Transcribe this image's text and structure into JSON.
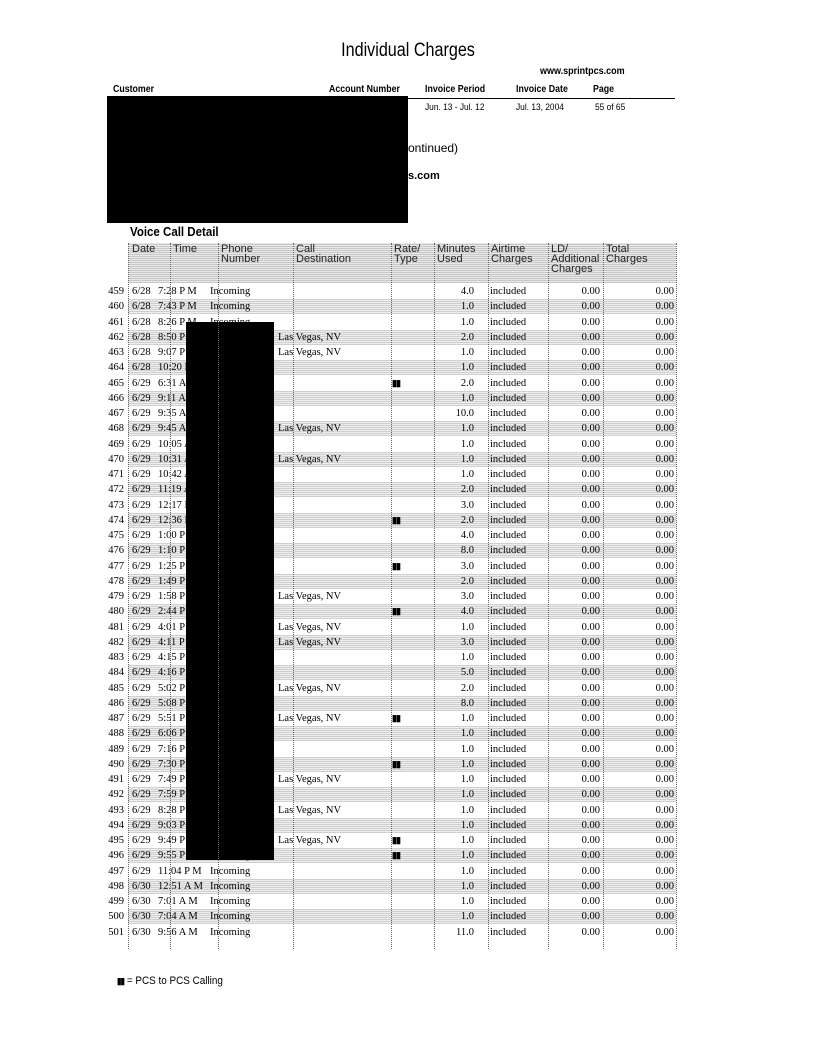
{
  "title": "Individual Charges",
  "website": "www.sprintpcs.com",
  "header": {
    "labels": {
      "customer": "Customer",
      "account_number": "Account Number",
      "invoice_period": "Invoice Period",
      "invoice_date": "Invoice Date",
      "page": "Page"
    },
    "values": {
      "invoice_period": "Jun. 13 - Jul. 12",
      "invoice_date": "Jul. 13, 2004",
      "page": "55 of 65"
    }
  },
  "partial_text": {
    "continued": "ontinued)",
    "email_suffix": "s.com"
  },
  "section_title": "Voice Call Detail",
  "columns": [
    "Date",
    "Time",
    "Phone Number",
    "Call Destination",
    "Rate/ Type",
    "Minutes Used",
    "Airtime Charges",
    "LD/ Additional Charges",
    "Total Charges"
  ],
  "pcs_icon": "walkie-talkie-pair-icon",
  "rows": [
    [
      "459",
      "6/28",
      "7:28 P M",
      "Incoming",
      "",
      false,
      "4.0",
      "included",
      "0.00",
      "0.00"
    ],
    [
      "460",
      "6/28",
      "7:43 P M",
      "Incoming",
      "",
      false,
      "1.0",
      "included",
      "0.00",
      "0.00"
    ],
    [
      "461",
      "6/28",
      "8:26 P M",
      "Incoming",
      "",
      false,
      "1.0",
      "included",
      "0.00",
      "0.00"
    ],
    [
      "462",
      "6/28",
      "8:50 P",
      "",
      "Las Vegas, NV",
      false,
      "2.0",
      "included",
      "0.00",
      "0.00"
    ],
    [
      "463",
      "6/28",
      "9:07 P",
      "",
      "Las Vegas, NV",
      false,
      "1.0",
      "included",
      "0.00",
      "0.00"
    ],
    [
      "464",
      "6/28",
      "10:20 P",
      "",
      "",
      false,
      "1.0",
      "included",
      "0.00",
      "0.00"
    ],
    [
      "465",
      "6/29",
      "6:31 A",
      "",
      "",
      true,
      "2.0",
      "included",
      "0.00",
      "0.00"
    ],
    [
      "466",
      "6/29",
      "9:11 A",
      "",
      "",
      false,
      "1.0",
      "included",
      "0.00",
      "0.00"
    ],
    [
      "467",
      "6/29",
      "9:35 A",
      "",
      "",
      false,
      "10.0",
      "included",
      "0.00",
      "0.00"
    ],
    [
      "468",
      "6/29",
      "9:45 A",
      "",
      "Las Vegas, NV",
      false,
      "1.0",
      "included",
      "0.00",
      "0.00"
    ],
    [
      "469",
      "6/29",
      "10:05 A",
      "",
      "",
      false,
      "1.0",
      "included",
      "0.00",
      "0.00"
    ],
    [
      "470",
      "6/29",
      "10:31 A",
      "",
      "Las Vegas, NV",
      false,
      "1.0",
      "included",
      "0.00",
      "0.00"
    ],
    [
      "471",
      "6/29",
      "10:42 A",
      "",
      "",
      false,
      "1.0",
      "included",
      "0.00",
      "0.00"
    ],
    [
      "472",
      "6/29",
      "11:19 A",
      "",
      "",
      false,
      "2.0",
      "included",
      "0.00",
      "0.00"
    ],
    [
      "473",
      "6/29",
      "12:17 P",
      "",
      "",
      false,
      "3.0",
      "included",
      "0.00",
      "0.00"
    ],
    [
      "474",
      "6/29",
      "12:36 P",
      "",
      "",
      true,
      "2.0",
      "included",
      "0.00",
      "0.00"
    ],
    [
      "475",
      "6/29",
      "1:00 P",
      "",
      "",
      false,
      "4.0",
      "included",
      "0.00",
      "0.00"
    ],
    [
      "476",
      "6/29",
      "1:10 P",
      "",
      "",
      false,
      "8.0",
      "included",
      "0.00",
      "0.00"
    ],
    [
      "477",
      "6/29",
      "1:25 P",
      "",
      "",
      true,
      "3.0",
      "included",
      "0.00",
      "0.00"
    ],
    [
      "478",
      "6/29",
      "1:49 P",
      "",
      "",
      false,
      "2.0",
      "included",
      "0.00",
      "0.00"
    ],
    [
      "479",
      "6/29",
      "1:58 P",
      "",
      "Las Vegas, NV",
      false,
      "3.0",
      "included",
      "0.00",
      "0.00"
    ],
    [
      "480",
      "6/29",
      "2:44 P",
      "",
      "",
      true,
      "4.0",
      "included",
      "0.00",
      "0.00"
    ],
    [
      "481",
      "6/29",
      "4:01 P",
      "",
      "Las Vegas, NV",
      false,
      "1.0",
      "included",
      "0.00",
      "0.00"
    ],
    [
      "482",
      "6/29",
      "4:11 P",
      "",
      "Las Vegas, NV",
      false,
      "3.0",
      "included",
      "0.00",
      "0.00"
    ],
    [
      "483",
      "6/29",
      "4:15 P",
      "",
      "",
      false,
      "1.0",
      "included",
      "0.00",
      "0.00"
    ],
    [
      "484",
      "6/29",
      "4:16 P",
      "",
      "",
      false,
      "5.0",
      "included",
      "0.00",
      "0.00"
    ],
    [
      "485",
      "6/29",
      "5:02 P",
      "",
      "Las Vegas, NV",
      false,
      "2.0",
      "included",
      "0.00",
      "0.00"
    ],
    [
      "486",
      "6/29",
      "5:08 P",
      "",
      "",
      false,
      "8.0",
      "included",
      "0.00",
      "0.00"
    ],
    [
      "487",
      "6/29",
      "5:51 P",
      "",
      "Las Vegas, NV",
      true,
      "1.0",
      "included",
      "0.00",
      "0.00"
    ],
    [
      "488",
      "6/29",
      "6:06 P",
      "",
      "",
      false,
      "1.0",
      "included",
      "0.00",
      "0.00"
    ],
    [
      "489",
      "6/29",
      "7:16 P",
      "",
      "",
      false,
      "1.0",
      "included",
      "0.00",
      "0.00"
    ],
    [
      "490",
      "6/29",
      "7:30 P",
      "",
      "",
      true,
      "1.0",
      "included",
      "0.00",
      "0.00"
    ],
    [
      "491",
      "6/29",
      "7:49 P",
      "",
      "Las Vegas, NV",
      false,
      "1.0",
      "included",
      "0.00",
      "0.00"
    ],
    [
      "492",
      "6/29",
      "7:59 P",
      "",
      "",
      false,
      "1.0",
      "included",
      "0.00",
      "0.00"
    ],
    [
      "493",
      "6/29",
      "8:28 P",
      "",
      "Las Vegas, NV",
      false,
      "1.0",
      "included",
      "0.00",
      "0.00"
    ],
    [
      "494",
      "6/29",
      "9:03 P",
      "",
      "",
      false,
      "1.0",
      "included",
      "0.00",
      "0.00"
    ],
    [
      "495",
      "6/29",
      "9:49 P",
      "",
      "Las Vegas, NV",
      true,
      "1.0",
      "included",
      "0.00",
      "0.00"
    ],
    [
      "496",
      "6/29",
      "9:55 P M",
      "Incoming",
      "",
      true,
      "1.0",
      "included",
      "0.00",
      "0.00"
    ],
    [
      "497",
      "6/29",
      "11:04 P M",
      "Incoming",
      "",
      false,
      "1.0",
      "included",
      "0.00",
      "0.00"
    ],
    [
      "498",
      "6/30",
      "12:51 A M",
      "Incoming",
      "",
      false,
      "1.0",
      "included",
      "0.00",
      "0.00"
    ],
    [
      "499",
      "6/30",
      "7:01 A M",
      "Incoming",
      "",
      false,
      "1.0",
      "included",
      "0.00",
      "0.00"
    ],
    [
      "500",
      "6/30",
      "7:04 A M",
      "Incoming",
      "",
      false,
      "1.0",
      "included",
      "0.00",
      "0.00"
    ],
    [
      "501",
      "6/30",
      "9:56 A M",
      "Incoming",
      "",
      false,
      "11.0",
      "included",
      "0.00",
      "0.00"
    ]
  ],
  "legend": {
    "text": "= PCS to PCS Calling"
  }
}
